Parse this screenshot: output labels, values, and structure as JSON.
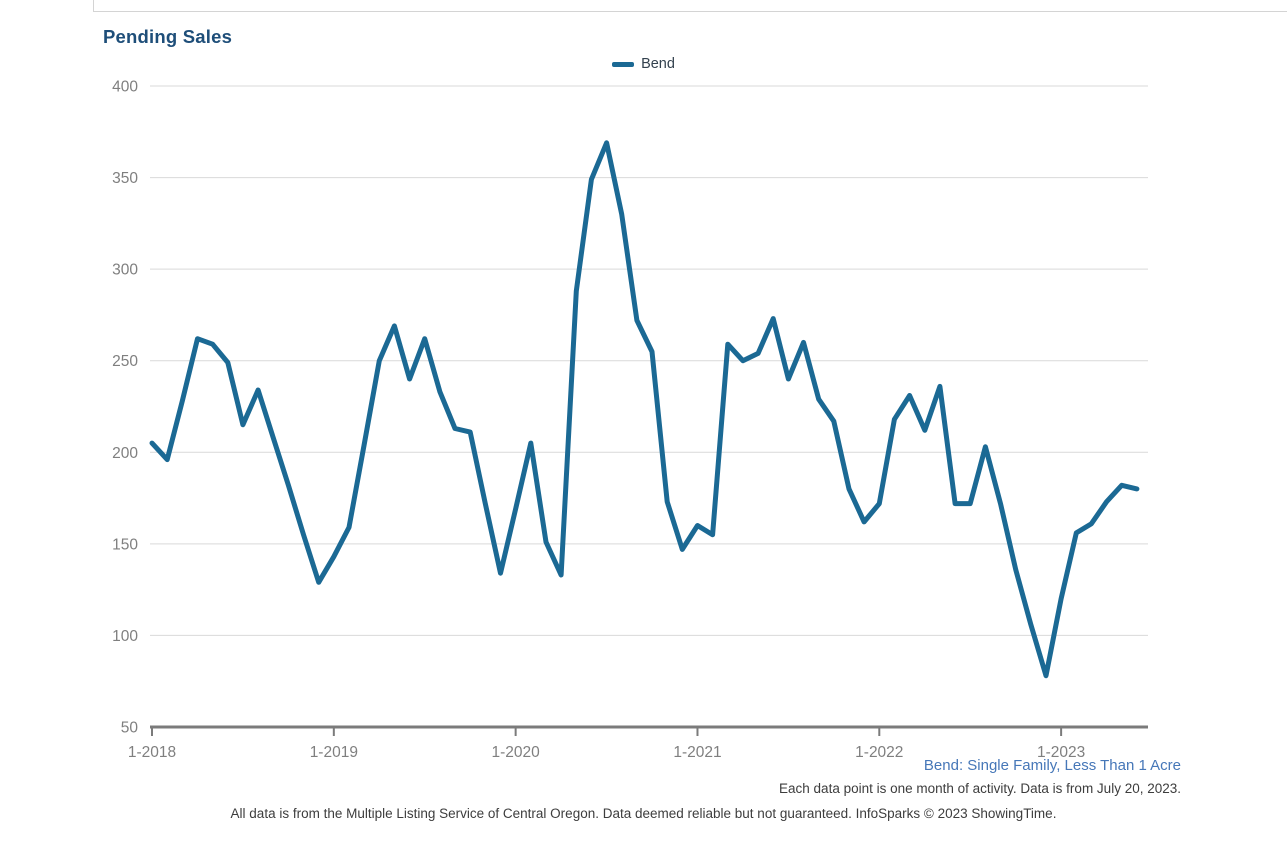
{
  "window": {
    "title": "Pending Sales"
  },
  "chart_data": {
    "type": "line",
    "title": "Pending Sales",
    "legend": {
      "position": "top-center",
      "entries": [
        "Bend"
      ]
    },
    "x_months": [
      "2018-01",
      "2018-02",
      "2018-03",
      "2018-04",
      "2018-05",
      "2018-06",
      "2018-07",
      "2018-08",
      "2018-09",
      "2018-10",
      "2018-11",
      "2018-12",
      "2019-01",
      "2019-02",
      "2019-03",
      "2019-04",
      "2019-05",
      "2019-06",
      "2019-07",
      "2019-08",
      "2019-09",
      "2019-10",
      "2019-11",
      "2019-12",
      "2020-01",
      "2020-02",
      "2020-03",
      "2020-04",
      "2020-05",
      "2020-06",
      "2020-07",
      "2020-08",
      "2020-09",
      "2020-10",
      "2020-11",
      "2020-12",
      "2021-01",
      "2021-02",
      "2021-03",
      "2021-04",
      "2021-05",
      "2021-06",
      "2021-07",
      "2021-08",
      "2021-09",
      "2021-10",
      "2021-11",
      "2021-12",
      "2022-01",
      "2022-02",
      "2022-03",
      "2022-04",
      "2022-05",
      "2022-06",
      "2022-07",
      "2022-08",
      "2022-09",
      "2022-10",
      "2022-11",
      "2022-12",
      "2023-01",
      "2023-02",
      "2023-03",
      "2023-04",
      "2023-05",
      "2023-06"
    ],
    "series": [
      {
        "name": "Bend",
        "color": "#1b6994",
        "values": [
          205,
          196,
          228,
          262,
          259,
          249,
          215,
          234,
          208,
          182,
          155,
          129,
          143,
          159,
          204,
          250,
          269,
          240,
          262,
          233,
          213,
          211,
          172,
          134,
          169,
          205,
          151,
          133,
          288,
          349,
          369,
          330,
          272,
          255,
          173,
          147,
          160,
          155,
          259,
          250,
          254,
          273,
          240,
          260,
          229,
          217,
          180,
          162,
          172,
          218,
          231,
          212,
          236,
          172,
          172,
          203,
          172,
          136,
          106,
          78,
          120,
          156,
          161,
          173,
          182,
          180
        ]
      }
    ],
    "y_ticks": [
      400,
      350,
      300,
      250,
      200,
      150,
      100,
      50
    ],
    "ylim": [
      50,
      400
    ],
    "x_tick_labels": [
      "1-2018",
      "1-2019",
      "1-2020",
      "1-2021",
      "1-2022",
      "1-2023"
    ],
    "grid": "horizontal-only"
  },
  "footnotes": {
    "series_note": "Bend: Single Family, Less Than 1 Acre",
    "data_note": "Each data point is one month of activity. Data is from July 20, 2023.",
    "disclaimer": "All data is from the Multiple Listing Service of Central Oregon. Data deemed reliable but not guaranteed. InfoSparks © 2023 ShowingTime."
  },
  "colors": {
    "line": "#1b6994",
    "title": "#1e4e79",
    "axis_text": "#7f7f7f",
    "grid": "#d9d9d9",
    "axis_line": "#7b7b7b",
    "footnote_link": "#4677b8",
    "footnote_text": "#3d3d3d",
    "legend_text": "#33414e",
    "border": "#d4d4d4"
  }
}
